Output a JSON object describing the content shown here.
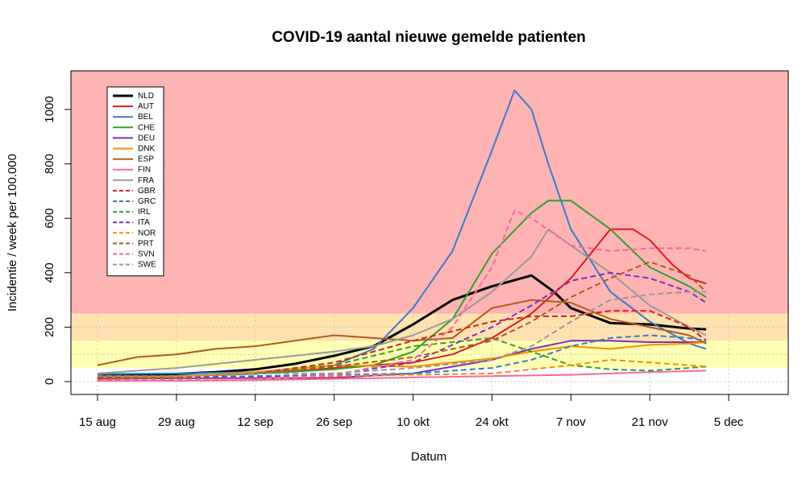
{
  "chart_data": {
    "type": "line",
    "title": "COVID-19 aantal nieuwe gemelde patienten",
    "xlabel": "Datum",
    "ylabel": "Incidentie / week per 100.000",
    "x_start": "2020-08-15",
    "x_end": "2020-12-15",
    "ylim": [
      -45,
      1145
    ],
    "yticks": [
      0,
      200,
      400,
      600,
      800,
      1000
    ],
    "xticks": [
      {
        "date": "2020-08-15",
        "label": "15 aug"
      },
      {
        "date": "2020-08-29",
        "label": "29 aug"
      },
      {
        "date": "2020-09-12",
        "label": "12 sep"
      },
      {
        "date": "2020-09-26",
        "label": "26 sep"
      },
      {
        "date": "2020-10-10",
        "label": "10 okt"
      },
      {
        "date": "2020-10-24",
        "label": "24 okt"
      },
      {
        "date": "2020-11-07",
        "label": "7 nov"
      },
      {
        "date": "2020-11-21",
        "label": "21 nov"
      },
      {
        "date": "2020-12-05",
        "label": "5 dec"
      }
    ],
    "bands": [
      {
        "from": 0,
        "to": 50,
        "color": "#ffffff"
      },
      {
        "from": 50,
        "to": 150,
        "color": "#ffffb3"
      },
      {
        "from": 150,
        "to": 250,
        "color": "#ffe2b0"
      },
      {
        "from": 250,
        "to": 1145,
        "color": "#ffb3b3"
      }
    ],
    "grid": true,
    "legend_position": "top-left",
    "series": [
      {
        "name": "NLD",
        "color": "#000000",
        "dash": "solid",
        "width": 3,
        "x": [
          "2020-08-15",
          "2020-08-22",
          "2020-08-29",
          "2020-09-05",
          "2020-09-12",
          "2020-09-19",
          "2020-09-26",
          "2020-10-03",
          "2020-10-10",
          "2020-10-17",
          "2020-10-24",
          "2020-10-31",
          "2020-11-04",
          "2020-11-07",
          "2020-11-14",
          "2020-11-21",
          "2020-11-28",
          "2020-12-01"
        ],
        "y": [
          20,
          24,
          28,
          35,
          45,
          65,
          95,
          130,
          210,
          300,
          350,
          390,
          330,
          270,
          215,
          210,
          195,
          192
        ]
      },
      {
        "name": "AUT",
        "color": "#e31a1c",
        "dash": "solid",
        "width": 2,
        "x": [
          "2020-08-15",
          "2020-08-29",
          "2020-09-12",
          "2020-09-26",
          "2020-10-03",
          "2020-10-10",
          "2020-10-17",
          "2020-10-24",
          "2020-10-31",
          "2020-11-07",
          "2020-11-14",
          "2020-11-18",
          "2020-11-21",
          "2020-11-25",
          "2020-11-28",
          "2020-12-01"
        ],
        "y": [
          15,
          20,
          30,
          50,
          60,
          70,
          100,
          160,
          250,
          380,
          560,
          560,
          520,
          430,
          380,
          360
        ]
      },
      {
        "name": "BEL",
        "color": "#3a7bc8",
        "dash": "solid",
        "width": 2,
        "x": [
          "2020-08-15",
          "2020-08-29",
          "2020-09-12",
          "2020-09-26",
          "2020-10-03",
          "2020-10-10",
          "2020-10-17",
          "2020-10-24",
          "2020-10-28",
          "2020-10-31",
          "2020-11-03",
          "2020-11-07",
          "2020-11-14",
          "2020-11-21",
          "2020-11-28",
          "2020-12-01"
        ],
        "y": [
          28,
          30,
          35,
          60,
          120,
          270,
          480,
          850,
          1070,
          1000,
          800,
          560,
          330,
          220,
          140,
          120
        ]
      },
      {
        "name": "CHE",
        "color": "#33a02c",
        "dash": "solid",
        "width": 2,
        "x": [
          "2020-08-15",
          "2020-08-29",
          "2020-09-12",
          "2020-09-26",
          "2020-10-03",
          "2020-10-10",
          "2020-10-17",
          "2020-10-24",
          "2020-10-31",
          "2020-11-03",
          "2020-11-07",
          "2020-11-14",
          "2020-11-21",
          "2020-11-28",
          "2020-12-01"
        ],
        "y": [
          20,
          20,
          28,
          45,
          60,
          110,
          230,
          470,
          620,
          665,
          665,
          560,
          420,
          350,
          310
        ]
      },
      {
        "name": "DEU",
        "color": "#7b2fbe",
        "dash": "solid",
        "width": 2,
        "x": [
          "2020-08-15",
          "2020-08-29",
          "2020-09-12",
          "2020-09-26",
          "2020-10-10",
          "2020-10-24",
          "2020-10-31",
          "2020-11-07",
          "2020-11-14",
          "2020-11-21",
          "2020-11-28",
          "2020-12-01"
        ],
        "y": [
          10,
          12,
          12,
          14,
          30,
          80,
          120,
          150,
          150,
          145,
          145,
          145
        ]
      },
      {
        "name": "DNK",
        "color": "#ff8c00",
        "dash": "solid",
        "width": 2,
        "x": [
          "2020-08-15",
          "2020-08-29",
          "2020-09-12",
          "2020-09-26",
          "2020-10-10",
          "2020-10-24",
          "2020-10-31",
          "2020-11-07",
          "2020-11-14",
          "2020-11-21",
          "2020-11-28",
          "2020-12-01"
        ],
        "y": [
          15,
          18,
          35,
          60,
          55,
          85,
          110,
          130,
          120,
          135,
          140,
          145
        ]
      },
      {
        "name": "ESP",
        "color": "#b05a1f",
        "dash": "solid",
        "width": 2,
        "x": [
          "2020-08-15",
          "2020-08-22",
          "2020-08-29",
          "2020-09-05",
          "2020-09-12",
          "2020-09-19",
          "2020-09-26",
          "2020-10-03",
          "2020-10-10",
          "2020-10-17",
          "2020-10-24",
          "2020-10-31",
          "2020-11-07",
          "2020-11-14",
          "2020-11-21",
          "2020-11-28",
          "2020-12-01"
        ],
        "y": [
          60,
          90,
          100,
          120,
          130,
          150,
          170,
          160,
          150,
          160,
          270,
          300,
          290,
          230,
          200,
          170,
          140
        ]
      },
      {
        "name": "FIN",
        "color": "#f768a1",
        "dash": "solid",
        "width": 2,
        "x": [
          "2020-08-15",
          "2020-08-29",
          "2020-09-12",
          "2020-09-26",
          "2020-10-10",
          "2020-10-24",
          "2020-11-07",
          "2020-11-21",
          "2020-12-01"
        ],
        "y": [
          2,
          3,
          5,
          10,
          15,
          20,
          25,
          35,
          40
        ]
      },
      {
        "name": "FRA",
        "color": "#999999",
        "dash": "solid",
        "width": 2,
        "x": [
          "2020-08-15",
          "2020-08-29",
          "2020-09-12",
          "2020-09-26",
          "2020-10-03",
          "2020-10-10",
          "2020-10-17",
          "2020-10-24",
          "2020-10-31",
          "2020-11-03",
          "2020-11-07",
          "2020-11-14",
          "2020-11-21",
          "2020-11-28",
          "2020-12-01"
        ],
        "y": [
          30,
          50,
          80,
          110,
          130,
          170,
          230,
          330,
          460,
          560,
          500,
          400,
          280,
          200,
          170
        ]
      },
      {
        "name": "GBR",
        "color": "#e31a1c",
        "dash": "dashed",
        "width": 2,
        "x": [
          "2020-08-15",
          "2020-08-29",
          "2020-09-12",
          "2020-09-26",
          "2020-10-10",
          "2020-10-24",
          "2020-10-31",
          "2020-11-07",
          "2020-11-14",
          "2020-11-21",
          "2020-11-28",
          "2020-12-01"
        ],
        "y": [
          15,
          18,
          30,
          70,
          150,
          220,
          240,
          240,
          260,
          260,
          200,
          150
        ]
      },
      {
        "name": "GRC",
        "color": "#3a7bc8",
        "dash": "dashed",
        "width": 2,
        "x": [
          "2020-08-15",
          "2020-08-29",
          "2020-09-12",
          "2020-09-26",
          "2020-10-10",
          "2020-10-24",
          "2020-10-31",
          "2020-11-07",
          "2020-11-14",
          "2020-11-21",
          "2020-11-28",
          "2020-12-01"
        ],
        "y": [
          10,
          15,
          20,
          25,
          30,
          50,
          80,
          130,
          160,
          170,
          160,
          150
        ]
      },
      {
        "name": "IRL",
        "color": "#33a02c",
        "dash": "dashed",
        "width": 2,
        "x": [
          "2020-08-15",
          "2020-08-29",
          "2020-09-12",
          "2020-09-26",
          "2020-10-10",
          "2020-10-24",
          "2020-10-31",
          "2020-11-07",
          "2020-11-14",
          "2020-11-21",
          "2020-11-28",
          "2020-12-01"
        ],
        "y": [
          10,
          15,
          30,
          60,
          130,
          160,
          110,
          60,
          45,
          40,
          50,
          55
        ]
      },
      {
        "name": "ITA",
        "color": "#7b2fbe",
        "dash": "dashed",
        "width": 2,
        "x": [
          "2020-08-15",
          "2020-08-29",
          "2020-09-12",
          "2020-09-26",
          "2020-10-10",
          "2020-10-24",
          "2020-10-31",
          "2020-11-07",
          "2020-11-14",
          "2020-11-21",
          "2020-11-28",
          "2020-12-01"
        ],
        "y": [
          8,
          12,
          15,
          25,
          70,
          200,
          280,
          370,
          400,
          380,
          330,
          290
        ]
      },
      {
        "name": "NOR",
        "color": "#ff8c00",
        "dash": "dashed",
        "width": 2,
        "x": [
          "2020-08-15",
          "2020-08-29",
          "2020-09-12",
          "2020-09-26",
          "2020-10-10",
          "2020-10-24",
          "2020-11-07",
          "2020-11-14",
          "2020-11-21",
          "2020-11-28",
          "2020-12-01"
        ],
        "y": [
          5,
          8,
          10,
          20,
          25,
          30,
          60,
          80,
          70,
          60,
          55
        ]
      },
      {
        "name": "PRT",
        "color": "#b05a1f",
        "dash": "dashed",
        "width": 2,
        "x": [
          "2020-08-15",
          "2020-08-29",
          "2020-09-12",
          "2020-09-26",
          "2020-10-10",
          "2020-10-24",
          "2020-10-31",
          "2020-11-07",
          "2020-11-14",
          "2020-11-21",
          "2020-11-28",
          "2020-12-01"
        ],
        "y": [
          10,
          15,
          30,
          55,
          90,
          150,
          220,
          310,
          380,
          440,
          390,
          330
        ]
      },
      {
        "name": "SVN",
        "color": "#f768a1",
        "dash": "dashed",
        "width": 2,
        "x": [
          "2020-08-15",
          "2020-08-29",
          "2020-09-12",
          "2020-09-26",
          "2020-10-10",
          "2020-10-17",
          "2020-10-24",
          "2020-10-28",
          "2020-10-31",
          "2020-11-07",
          "2020-11-14",
          "2020-11-21",
          "2020-11-28",
          "2020-12-01"
        ],
        "y": [
          5,
          5,
          10,
          25,
          80,
          200,
          420,
          630,
          600,
          500,
          480,
          490,
          490,
          480
        ]
      },
      {
        "name": "SWE",
        "color": "#999999",
        "dash": "dashed",
        "width": 2,
        "x": [
          "2020-08-15",
          "2020-08-29",
          "2020-09-12",
          "2020-09-26",
          "2020-10-10",
          "2020-10-24",
          "2020-10-31",
          "2020-11-07",
          "2020-11-14",
          "2020-11-21",
          "2020-11-28",
          "2020-12-01"
        ],
        "y": [
          20,
          20,
          30,
          30,
          50,
          80,
          130,
          220,
          300,
          320,
          330,
          330
        ]
      }
    ]
  }
}
